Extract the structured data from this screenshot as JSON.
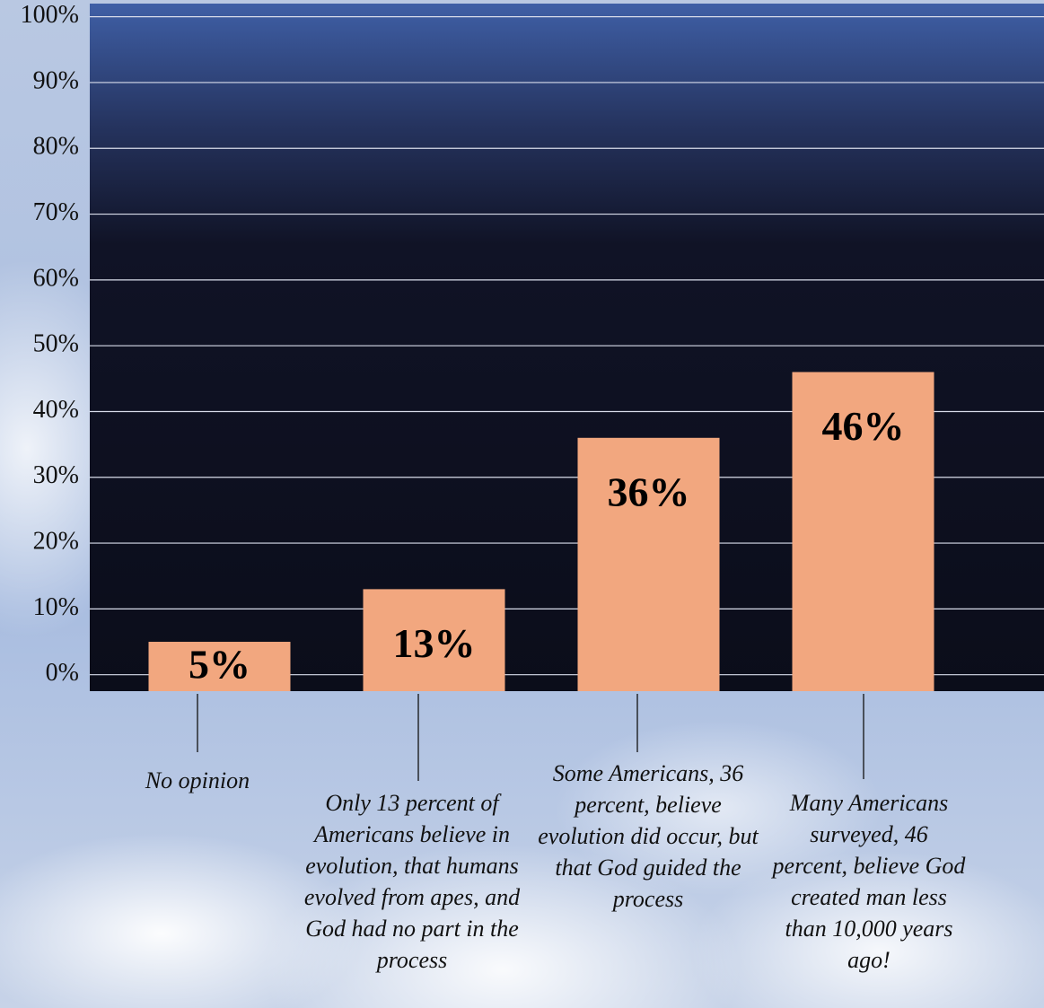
{
  "chart_data": {
    "type": "bar",
    "categories": [
      "No opinion",
      "Only 13 percent of Americans believe in evolution, that humans evolved from apes, and God had no part in the process",
      "Some Americans, 36 percent, believe evolution did occur, but that God guided the process",
      "Many Americans surveyed, 46 percent, believe God created man less than 10,000 years ago!"
    ],
    "values": [
      5,
      13,
      36,
      46
    ],
    "value_labels": [
      "5%",
      "13%",
      "36%",
      "46%"
    ],
    "color": "#f2a77f",
    "ylim": [
      -2.5,
      102
    ],
    "yticks": [
      {
        "value": 0,
        "label": "0%"
      },
      {
        "value": 10,
        "label": "10%"
      },
      {
        "value": 20,
        "label": "20%"
      },
      {
        "value": 30,
        "label": "30%"
      },
      {
        "value": 40,
        "label": "40%"
      },
      {
        "value": 50,
        "label": "50%"
      },
      {
        "value": 60,
        "label": "60%"
      },
      {
        "value": 70,
        "label": "70%"
      },
      {
        "value": 80,
        "label": "80%"
      },
      {
        "value": 90,
        "label": "90%"
      },
      {
        "value": 100,
        "label": "100%"
      }
    ],
    "grid": true
  }
}
